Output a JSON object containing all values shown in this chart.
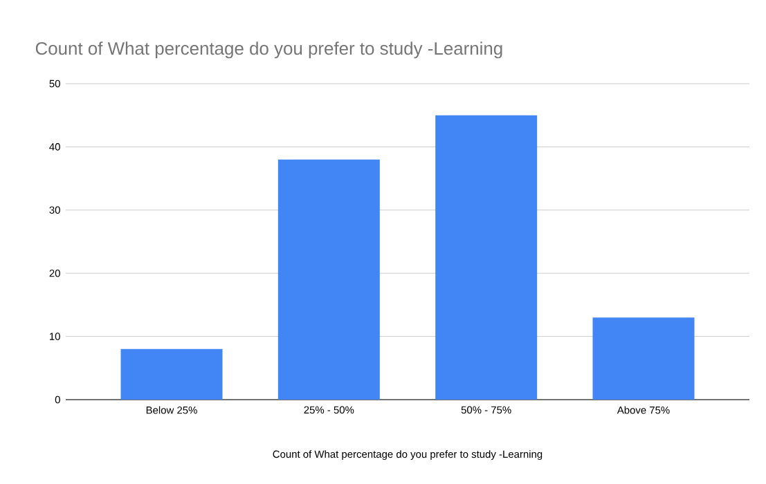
{
  "chart_data": {
    "type": "bar",
    "title": "Count of What percentage do you prefer to study -Learning",
    "xlabel": "Count of What percentage do you prefer to study -Learning",
    "categories": [
      "Below 25%",
      "25% - 50%",
      "50% - 75%",
      "Above 75%"
    ],
    "values": [
      8,
      38,
      45,
      13
    ],
    "color": "#4285f4",
    "ylim": [
      0,
      50
    ],
    "yticks": [
      0,
      10,
      20,
      30,
      40,
      50
    ],
    "grid": "y"
  }
}
